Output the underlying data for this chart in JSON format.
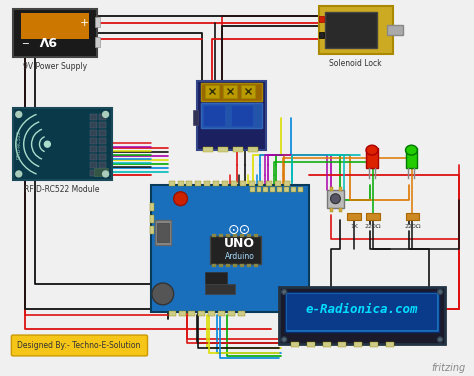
{
  "bg_color": "#f0f0f0",
  "designer_text": "Designed By:- Techno-E-Solution",
  "designer_box_color": "#f5c518",
  "fritzing_text": "fritzing",
  "lcd_text": "e-Radionica.com",
  "lcd_bg": "#1a6fbd",
  "lcd_screen_bg": "#0a3a8a",
  "lcd_text_color": "#00ddff",
  "arduino_color": "#1a6fbd",
  "battery_body": "#1a1a1a",
  "battery_orange": "#cc7700",
  "rfid_color": "#0a3a4a",
  "relay_body": "#1a2a7a",
  "relay_top": "#996600",
  "solenoid_body": "#ccaa22",
  "solenoid_inner": "#2a2a2a",
  "solenoid_shaft": "#aaaaaa",
  "red_led": "#dd2200",
  "green_led": "#22cc00",
  "resistor_color": "#cc8822",
  "btn_color": "#cccccc",
  "wire_red": "#dd1111",
  "wire_black": "#111111",
  "wire_yellow": "#dddd00",
  "wire_blue": "#0088dd",
  "wire_purple": "#aa00aa",
  "wire_green": "#00aa00",
  "wire_orange": "#dd7700",
  "wire_cyan": "#00bbbb",
  "wire_white": "#dddddd",
  "pin_color": "#cccc88"
}
